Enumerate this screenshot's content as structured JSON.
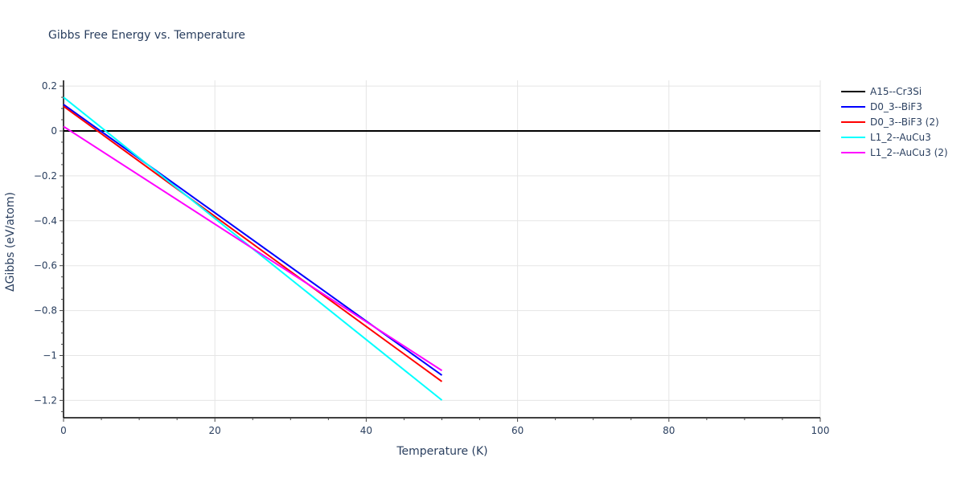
{
  "chart_data": {
    "type": "line",
    "title": "Gibbs Free Energy vs. Temperature",
    "xlabel": "Temperature (K)",
    "ylabel": "ΔGibbs (eV/atom)",
    "xlim": [
      0,
      100
    ],
    "ylim": [
      -1.27,
      0.22
    ],
    "x_ticks": [
      0,
      20,
      40,
      60,
      80,
      100
    ],
    "y_ticks": [
      0.2,
      0,
      -0.2,
      -0.4,
      -0.6,
      -0.8,
      -1,
      -1.2
    ],
    "y_tick_labels": [
      "0.2",
      "0",
      "−0.2",
      "−0.4",
      "−0.6",
      "−0.8",
      "−1",
      "−1.2"
    ],
    "grid": true,
    "legend_position": "right",
    "series": [
      {
        "name": "A15--Cr3Si",
        "color": "#000000",
        "x": [
          0,
          100
        ],
        "y": [
          0,
          0
        ]
      },
      {
        "name": "D0_3--BiF3",
        "color": "#0000ff",
        "x": [
          0,
          50
        ],
        "y": [
          0.118,
          -1.088
        ]
      },
      {
        "name": "D0_3--BiF3 (2)",
        "color": "#ff0000",
        "x": [
          0,
          50
        ],
        "y": [
          0.11,
          -1.116
        ]
      },
      {
        "name": "L1_2--AuCu3",
        "color": "#00ffff",
        "x": [
          0,
          50
        ],
        "y": [
          0.15,
          -1.199
        ]
      },
      {
        "name": "L1_2--AuCu3 (2)",
        "color": "#ff00ff",
        "x": [
          0,
          50
        ],
        "y": [
          0.02,
          -1.067
        ]
      }
    ]
  },
  "legend": {
    "items": [
      {
        "label": "A15--Cr3Si",
        "color": "#000000"
      },
      {
        "label": "D0_3--BiF3",
        "color": "#0000ff"
      },
      {
        "label": "D0_3--BiF3 (2)",
        "color": "#ff0000"
      },
      {
        "label": "L1_2--AuCu3",
        "color": "#00ffff"
      },
      {
        "label": "L1_2--AuCu3 (2)",
        "color": "#ff00ff"
      }
    ]
  }
}
